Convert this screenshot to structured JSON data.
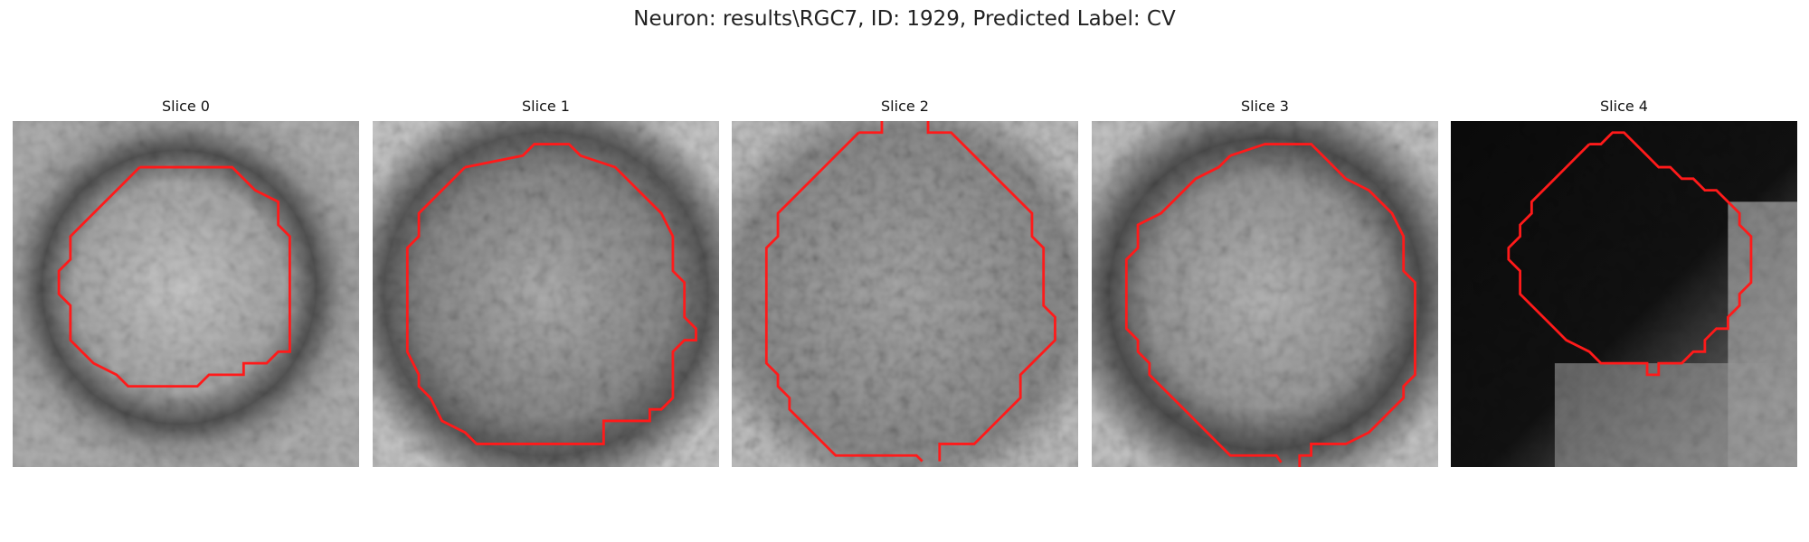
{
  "figure": {
    "title": "Neuron: results\\RGC7, ID: 1929, Predicted Label: CV"
  },
  "colors": {
    "contour": "#ff1a1a",
    "background": "#ffffff"
  },
  "slices": [
    {
      "title": "Slice 0"
    },
    {
      "title": "Slice 1"
    },
    {
      "title": "Slice 2"
    },
    {
      "title": "Slice 3"
    },
    {
      "title": "Slice 4"
    }
  ]
}
